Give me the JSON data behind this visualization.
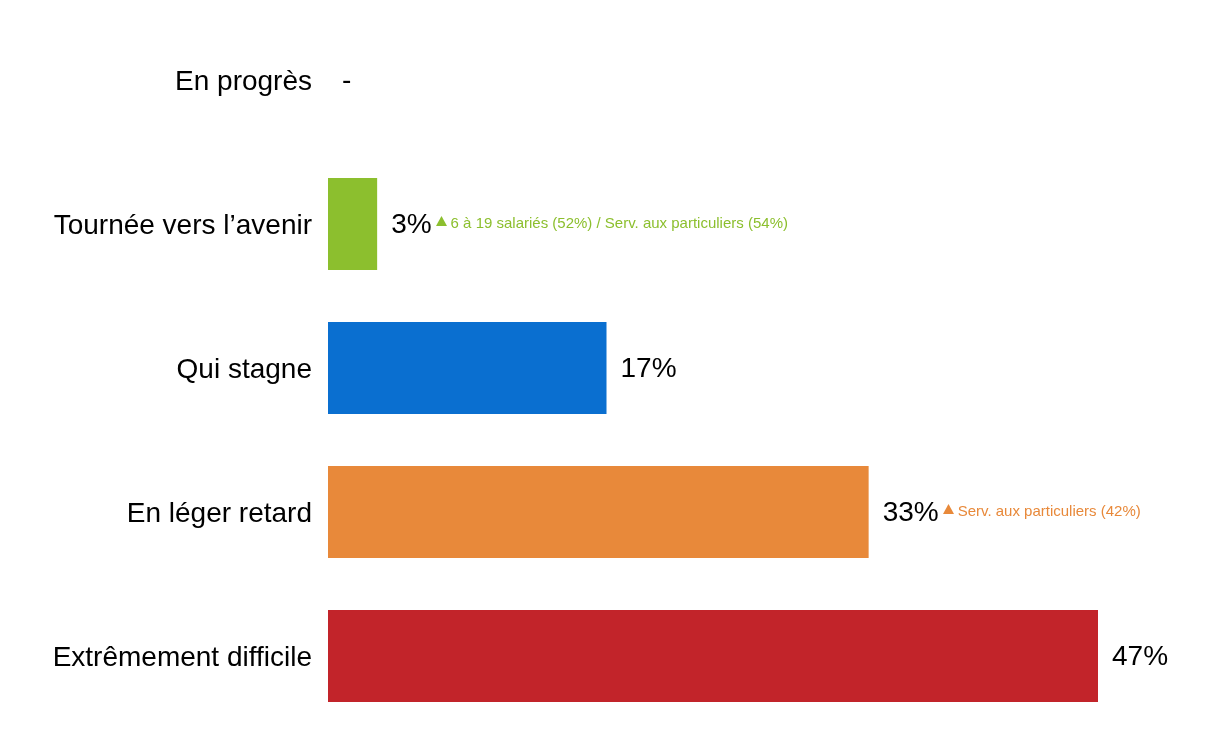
{
  "chart_data": {
    "type": "bar",
    "orientation": "horizontal",
    "categories": [
      "En progrès",
      "Tournée vers l’avenir",
      "Qui stagne",
      "En léger retard",
      "Extrêmement difficile"
    ],
    "values": [
      null,
      3,
      17,
      33,
      47
    ],
    "colors": [
      "#888888",
      "#8cbf2e",
      "#0a6fd0",
      "#e8893a",
      "#c2242a"
    ],
    "value_labels": [
      "-",
      "3%",
      "17%",
      "33%",
      "47%"
    ],
    "annotations": [
      "6 à 19 salariés (52%) / Serv. aux  particuliers (54%)",
      "Serv. aux  particuliers (42%)"
    ],
    "grid": false,
    "legend": false
  }
}
